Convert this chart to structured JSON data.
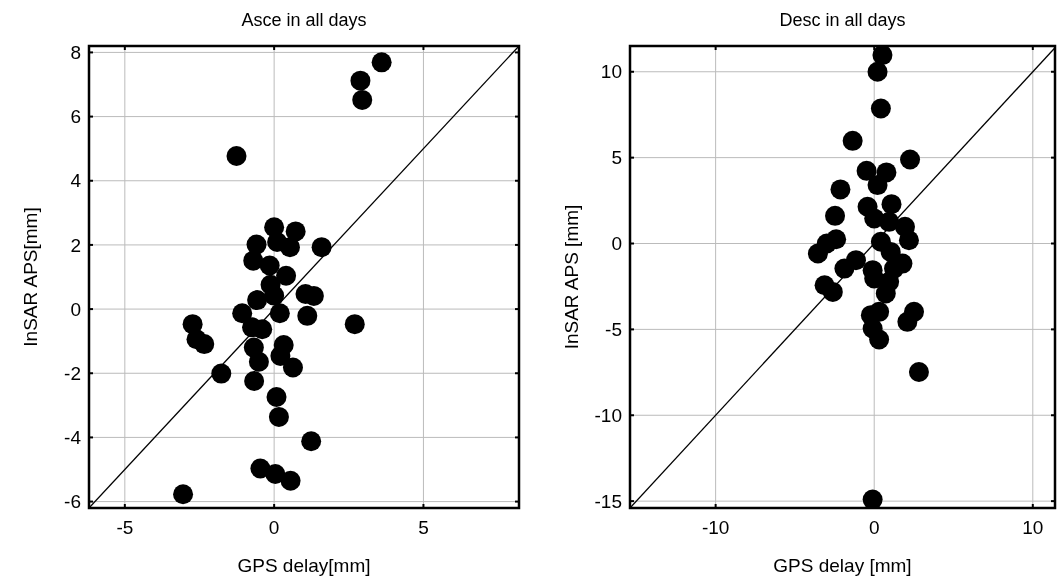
{
  "chart_data": [
    {
      "type": "scatter",
      "title": "Asce in all days",
      "xlabel": "GPS delay[mm]",
      "ylabel": "InSAR APS[mm]",
      "xlim": [
        -6.2,
        8.2
      ],
      "ylim": [
        -6.2,
        8.2
      ],
      "xticks": [
        -5,
        0,
        5
      ],
      "yticks": [
        -6,
        -4,
        -2,
        0,
        2,
        4,
        6,
        8
      ],
      "grid": true,
      "series": [
        {
          "type": "scatter",
          "marker": "circle",
          "color": "#000000",
          "x": [
            3.6,
            2.89,
            2.95,
            -1.26,
            0,
            0.72,
            -0.59,
            0.1,
            0.53,
            1.59,
            -0.7,
            -0.15,
            0.4,
            -0.12,
            0,
            -0.57,
            1.05,
            1.33,
            -1.07,
            0.19,
            1.11,
            -2.73,
            2.7,
            -2.6,
            -2.34,
            -0.74,
            -0.4,
            -0.68,
            0.32,
            0.21,
            -0.51,
            0.63,
            -1.77,
            -0.67,
            0.08,
            0.16,
            1.24,
            -0.46,
            0.04,
            0.55,
            -3.05
          ],
          "values": [
            7.69,
            7.12,
            6.52,
            4.77,
            2.55,
            2.42,
            2.01,
            2.09,
            1.93,
            1.93,
            1.51,
            1.36,
            1.04,
            0.76,
            0.42,
            0.28,
            0.47,
            0.41,
            -0.13,
            -0.13,
            -0.21,
            -0.47,
            -0.47,
            -0.94,
            -1.09,
            -0.57,
            -0.63,
            -1.2,
            -1.12,
            -1.46,
            -1.64,
            -1.82,
            -2.01,
            -2.24,
            -2.74,
            -3.36,
            -4.12,
            -4.97,
            -5.14,
            -5.35,
            -5.77
          ]
        },
        {
          "type": "line",
          "color": "#000000",
          "x": [
            -6.2,
            8.2
          ],
          "values": [
            -6.2,
            8.2
          ]
        }
      ]
    },
    {
      "type": "scatter",
      "title": "Desc in all days",
      "xlabel": "GPS delay [mm]",
      "ylabel": "InSAR APS [mm]",
      "xlim": [
        -15.4,
        11.4
      ],
      "ylim": [
        -15.4,
        11.5
      ],
      "xticks": [
        -10,
        0,
        10
      ],
      "yticks": [
        -15,
        -10,
        -5,
        0,
        5,
        10
      ],
      "grid": true,
      "series": [
        {
          "type": "scatter",
          "marker": "circle",
          "color": "#000000",
          "x": [
            0.52,
            0.21,
            0.42,
            -1.36,
            2.26,
            -0.48,
            0.77,
            0.21,
            -2.13,
            -2.47,
            -0.42,
            1.09,
            0,
            0.94,
            1.94,
            2.19,
            -2.4,
            -2.99,
            -3.55,
            0.42,
            1.04,
            -1.15,
            -1.88,
            -0.1,
            1.78,
            1.25,
            0,
            0.94,
            0.73,
            -3.13,
            -2.61,
            0.31,
            -0.21,
            2.51,
            2.09,
            -0.1,
            0.31,
            2.82,
            -0.1
          ],
          "values": [
            10.97,
            10.0,
            7.86,
            5.98,
            4.89,
            4.23,
            4.14,
            3.4,
            3.15,
            1.61,
            2.14,
            2.29,
            1.46,
            1.26,
            0.97,
            0.19,
            0.25,
            0,
            -0.58,
            0.1,
            -0.49,
            -0.97,
            -1.46,
            -1.55,
            -1.17,
            -1.46,
            -2.04,
            -2.23,
            -2.91,
            -2.43,
            -2.82,
            -3.98,
            -4.17,
            -3.98,
            -4.56,
            -4.95,
            -5.59,
            -7.48,
            -14.91
          ]
        },
        {
          "type": "line",
          "color": "#000000",
          "x": [
            -15.4,
            11.4
          ],
          "values": [
            -15.4,
            11.4
          ]
        }
      ]
    }
  ]
}
